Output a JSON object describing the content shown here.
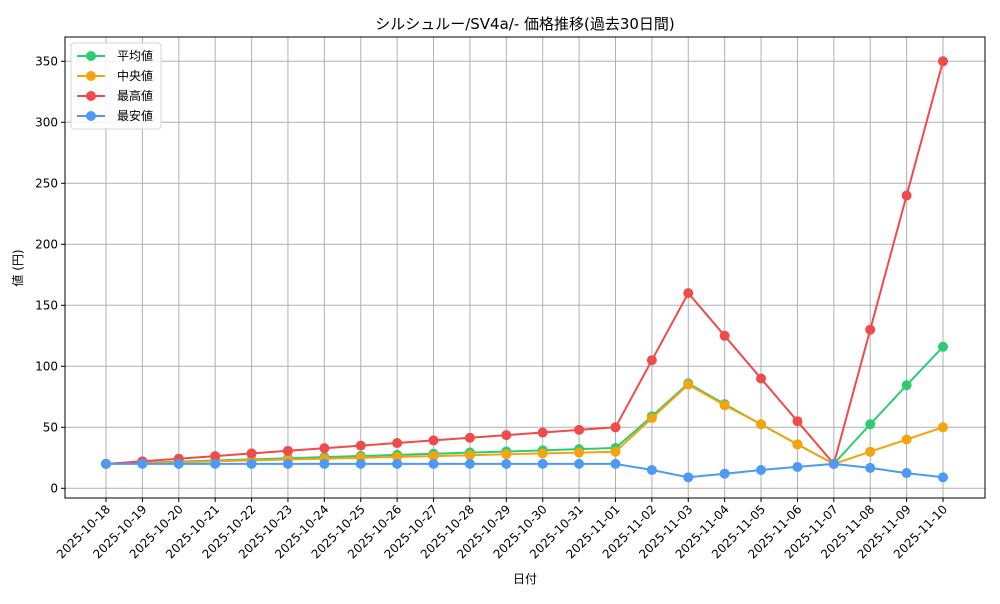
{
  "chart_data": {
    "type": "line",
    "title": "シルシュルー/SV4a/- 価格推移(過去30日間)",
    "xlabel": "日付",
    "ylabel": "値 (円)",
    "ylim": [
      -10,
      367
    ],
    "yticks": [
      0,
      50,
      100,
      150,
      200,
      250,
      300,
      350
    ],
    "grid": true,
    "legend_position": "upper left",
    "x": [
      "2025-10-18",
      "2025-10-19",
      "2025-10-20",
      "2025-10-21",
      "2025-10-22",
      "2025-10-23",
      "2025-10-24",
      "2025-10-25",
      "2025-10-26",
      "2025-10-27",
      "2025-10-28",
      "2025-10-29",
      "2025-10-30",
      "2025-10-31",
      "2025-11-01",
      "2025-11-02",
      "2025-11-03",
      "2025-11-04",
      "2025-11-05",
      "2025-11-06",
      "2025-11-07",
      "2025-11-08",
      "2025-11-09",
      "2025-11-10"
    ],
    "series": [
      {
        "name": "平均値",
        "color": "#2ecc71",
        "values": [
          20,
          21,
          21.9,
          22.8,
          23.7,
          24.6,
          25.6,
          26.5,
          27.4,
          28.3,
          29.3,
          30.2,
          31.1,
          32.1,
          33,
          59,
          86,
          69,
          52.5,
          36,
          20,
          52.5,
          84.5,
          116
        ]
      },
      {
        "name": "中央値",
        "color": "#f5a30f",
        "values": [
          20,
          20.7,
          21.4,
          22.1,
          22.9,
          23.6,
          24.3,
          25,
          25.7,
          26.4,
          27.1,
          27.9,
          28.6,
          29.3,
          30,
          57.5,
          85,
          68,
          52.5,
          36,
          20,
          30,
          40,
          50
        ]
      },
      {
        "name": "最高値",
        "color": "#f04b4b",
        "values": [
          20,
          22.1,
          24.3,
          26.4,
          28.6,
          30.7,
          32.9,
          35,
          37.1,
          39.3,
          41.4,
          43.6,
          45.7,
          47.9,
          50,
          105,
          160,
          125,
          90,
          55,
          20,
          130,
          240,
          350
        ]
      },
      {
        "name": "最安値",
        "color": "#4d9af5",
        "values": [
          20,
          20,
          20,
          20,
          20,
          20,
          20,
          20,
          20,
          20,
          20,
          20,
          20,
          20,
          20,
          15,
          9,
          12,
          15,
          17.5,
          20,
          16.7,
          12.5,
          9
        ]
      }
    ]
  }
}
